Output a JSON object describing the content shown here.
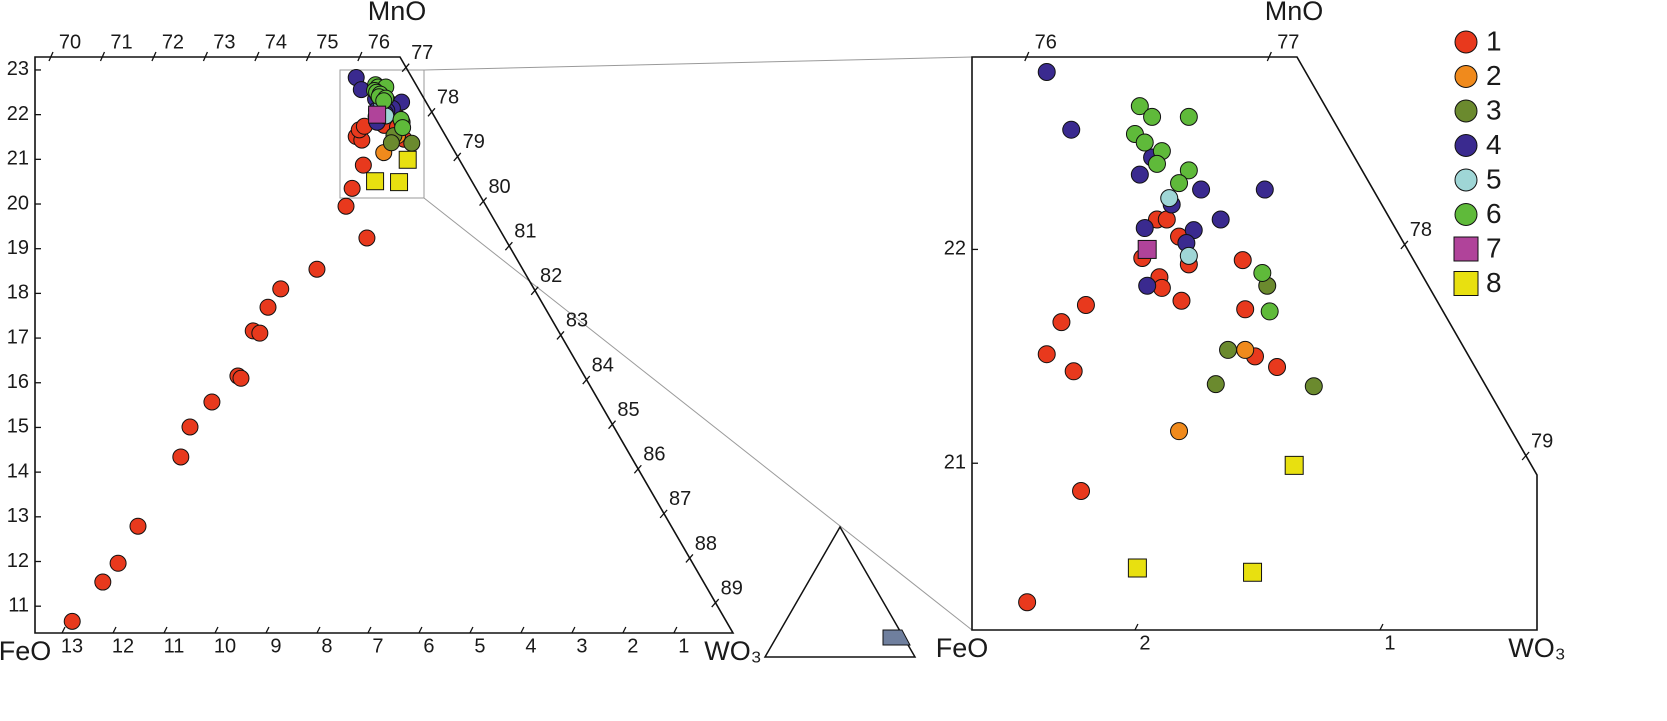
{
  "chart_data": [
    {
      "type": "scatter",
      "corner_labels": {
        "top": "MnO",
        "left": "FeO",
        "right": "WO₃"
      },
      "xlim": [
        13.53,
        -0.16
      ],
      "xticks": [
        13,
        12,
        11,
        10,
        9,
        8,
        7,
        6,
        5,
        4,
        3,
        2,
        1
      ],
      "ylim": [
        10.4,
        23.29
      ],
      "yticks": [
        11,
        12,
        13,
        14,
        15,
        16,
        17,
        18,
        19,
        20,
        21,
        22,
        23
      ],
      "top_axis": {
        "lim": [
          69.67,
          76.76
        ],
        "ticks": [
          70,
          71,
          72,
          73,
          74,
          75,
          76
        ]
      },
      "diagonal_axis": {
        "lim": [
          76.76,
          89.67
        ],
        "ticks": [
          77,
          78,
          79,
          80,
          81,
          82,
          83,
          84,
          85,
          86,
          87,
          88,
          89
        ]
      },
      "series": [
        {
          "color": "#e8391d",
          "marker": "circle",
          "x": [
            12.8,
            12.2,
            11.9,
            11.51,
            10.67,
            10.49,
            10.06,
            9.55,
            9.49,
            9.25,
            9.12,
            8.96,
            8.71,
            8.0,
            7.43,
            7.02,
            7.31,
            7.09,
            7.23,
            7.12,
            7.17,
            7.07,
            6.84,
            6.77,
            6.76,
            6.78,
            6.74,
            6.69,
            6.65,
            6.68,
            6.43,
            6.42,
            6.38,
            6.29
          ],
          "values": [
            10.66,
            11.54,
            11.96,
            12.79,
            14.34,
            15.01,
            15.57,
            16.15,
            16.1,
            17.16,
            17.11,
            17.69,
            18.1,
            18.54,
            19.95,
            19.24,
            20.35,
            20.87,
            21.51,
            21.43,
            21.66,
            21.74,
            21.96,
            21.87,
            21.82,
            22.14,
            22.14,
            22.06,
            21.93,
            21.76,
            21.95,
            21.72,
            21.5,
            21.45
          ]
        },
        {
          "color": "#f08a1c",
          "marker": "circle",
          "x": [
            6.42,
            6.69
          ],
          "values": [
            21.53,
            21.15
          ]
        },
        {
          "color": "#6b8a2e",
          "marker": "circle",
          "x": [
            6.49,
            6.54,
            6.14,
            6.33
          ],
          "values": [
            21.53,
            21.37,
            21.36,
            21.83
          ]
        },
        {
          "color": "#3a2a8f",
          "marker": "circle",
          "x": [
            7.23,
            7.13,
            6.85,
            6.8,
            6.72,
            6.6,
            6.34,
            6.52,
            6.83,
            6.63,
            6.66,
            6.82
          ],
          "values": [
            22.83,
            22.56,
            22.35,
            22.43,
            22.21,
            22.28,
            22.28,
            22.14,
            22.1,
            22.09,
            22.03,
            21.83
          ]
        },
        {
          "color": "#9fd6d6",
          "marker": "circle",
          "x": [
            6.73,
            6.65
          ],
          "values": [
            22.24,
            21.97
          ]
        },
        {
          "color": "#5fba3a",
          "marker": "circle",
          "x": [
            6.85,
            6.8,
            6.65,
            6.87,
            6.83,
            6.76,
            6.78,
            6.65,
            6.69,
            6.35,
            6.32
          ],
          "values": [
            22.67,
            22.62,
            22.62,
            22.54,
            22.5,
            22.46,
            22.4,
            22.37,
            22.31,
            21.89,
            21.71
          ]
        },
        {
          "color": "#b0439a",
          "marker": "square",
          "x": [
            6.82
          ],
          "values": [
            22.0
          ]
        },
        {
          "color": "#e8e010",
          "marker": "square",
          "x": [
            6.86,
            6.39,
            6.22
          ],
          "values": [
            20.51,
            20.49,
            20.99
          ]
        }
      ]
    },
    {
      "type": "scatter",
      "corner_labels": {
        "top": "MnO",
        "left": "FeO",
        "right": "WO₃"
      },
      "xlim": [
        2.665,
        0.359
      ],
      "xticks": [
        2,
        1
      ],
      "ylim": [
        20.22,
        22.9
      ],
      "yticks": [
        21,
        22
      ],
      "top_axis": {
        "lim": [
          75.77,
          77.11
        ],
        "ticks": [
          76,
          77
        ]
      },
      "diagonal_axis": {
        "lim": [
          77.11,
          79.09
        ],
        "ticks": [
          78,
          79
        ]
      },
      "series": [
        {
          "name": "1",
          "color": "#e8391d",
          "marker": "circle",
          "x": [
            2.44,
            2.22,
            2.36,
            2.25,
            2.3,
            2.2,
            1.97,
            1.9,
            1.89,
            1.91,
            1.87,
            1.82,
            1.78,
            1.81,
            1.56,
            1.55,
            1.51,
            1.42
          ],
          "values": [
            20.35,
            20.87,
            21.51,
            21.43,
            21.66,
            21.74,
            21.96,
            21.87,
            21.82,
            22.14,
            22.14,
            22.06,
            21.93,
            21.76,
            21.95,
            21.72,
            21.5,
            21.45
          ]
        },
        {
          "name": "2",
          "color": "#f08a1c",
          "marker": "circle",
          "x": [
            1.55,
            1.82
          ],
          "values": [
            21.53,
            21.15
          ]
        },
        {
          "name": "3",
          "color": "#6b8a2e",
          "marker": "circle",
          "x": [
            1.62,
            1.67,
            1.27,
            1.46
          ],
          "values": [
            21.53,
            21.37,
            21.36,
            21.83
          ]
        },
        {
          "name": "4",
          "color": "#3a2a8f",
          "marker": "circle",
          "x": [
            2.36,
            2.26,
            1.98,
            1.93,
            1.85,
            1.73,
            1.47,
            1.65,
            1.96,
            1.76,
            1.79,
            1.95
          ],
          "values": [
            22.83,
            22.56,
            22.35,
            22.43,
            22.21,
            22.28,
            22.28,
            22.14,
            22.1,
            22.09,
            22.03,
            21.83
          ]
        },
        {
          "name": "5",
          "color": "#9fd6d6",
          "marker": "circle",
          "x": [
            1.86,
            1.78
          ],
          "values": [
            22.24,
            21.97
          ]
        },
        {
          "name": "6",
          "color": "#5fba3a",
          "marker": "circle",
          "x": [
            1.98,
            1.93,
            1.78,
            2.0,
            1.96,
            1.89,
            1.91,
            1.78,
            1.82,
            1.48,
            1.45
          ],
          "values": [
            22.67,
            22.62,
            22.62,
            22.54,
            22.5,
            22.46,
            22.4,
            22.37,
            22.31,
            21.89,
            21.71
          ]
        },
        {
          "name": "7",
          "color": "#b0439a",
          "marker": "square",
          "x": [
            1.95
          ],
          "values": [
            22.0
          ]
        },
        {
          "name": "8",
          "color": "#e8e010",
          "marker": "square",
          "x": [
            1.99,
            1.52,
            1.35
          ],
          "values": [
            20.51,
            20.49,
            20.99
          ]
        }
      ]
    }
  ]
}
